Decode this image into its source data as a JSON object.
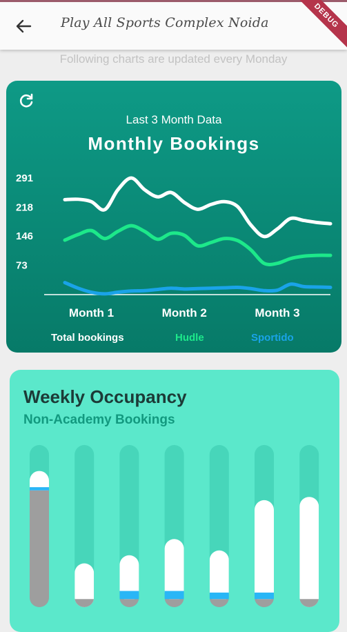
{
  "appbar": {
    "title": "Play All Sports Complex Noida",
    "debug_label": "DEBUG"
  },
  "header_note": "Following charts are updated every Monday",
  "icons": {
    "back": "arrow-left-icon",
    "refresh": "refresh-icon"
  },
  "colors": {
    "total": "#ffffff",
    "hudle": "#1de88a",
    "sportido": "#1aa3e8",
    "monthly_card": "#0e9a86",
    "weekly_card": "#5be8cb",
    "bar_track": "#47d6ba",
    "bar_grey": "#9e9e9e",
    "bar_white": "#ffffff",
    "bar_blue": "#29b6f6"
  },
  "monthly": {
    "kicker": "Last 3 Month Data",
    "title": "Monthly Bookings"
  },
  "weekly": {
    "title": "Weekly Occupancy",
    "subtitle": "Non-Academy Bookings"
  },
  "chart_data": [
    {
      "type": "line",
      "title": "Monthly Bookings",
      "subtitle": "Last 3 Month Data",
      "categories": [
        "Month 1",
        "Month 2",
        "Month 3"
      ],
      "x": [
        0,
        1,
        2,
        3,
        4,
        5,
        6,
        7,
        8,
        9,
        10,
        11,
        12,
        13,
        14,
        15,
        16,
        17,
        18,
        19,
        20
      ],
      "x_ticks": [
        {
          "label": "Month 1",
          "x": 2
        },
        {
          "label": "Month 2",
          "x": 9
        },
        {
          "label": "Month 3",
          "x": 16
        }
      ],
      "y_ticks": [
        73,
        146,
        218,
        291
      ],
      "ylim": [
        0,
        310
      ],
      "grid": false,
      "legend": "bottom",
      "series": [
        {
          "name": "Total bookings",
          "color": "#ffffff",
          "values": [
            237,
            238,
            232,
            212,
            262,
            291,
            262,
            244,
            255,
            230,
            213,
            225,
            232,
            220,
            174,
            145,
            164,
            190,
            185,
            180,
            177
          ]
        },
        {
          "name": "Hudle",
          "color": "#1de88a",
          "values": [
            136,
            150,
            160,
            140,
            158,
            172,
            158,
            138,
            153,
            148,
            122,
            130,
            140,
            135,
            112,
            78,
            78,
            90,
            96,
            98,
            98
          ]
        },
        {
          "name": "Sportido",
          "color": "#1aa3e8",
          "values": [
            30,
            16,
            6,
            2,
            6,
            9,
            10,
            13,
            16,
            14,
            15,
            16,
            17,
            18,
            15,
            10,
            11,
            26,
            20,
            19,
            18
          ]
        }
      ]
    },
    {
      "type": "bar",
      "title": "Weekly Occupancy",
      "subtitle": "Non-Academy Bookings",
      "ylim": [
        0,
        1
      ],
      "series": [
        {
          "name": "grey",
          "color": "#9e9e9e",
          "values": [
            0.72,
            0.05,
            0.05,
            0.05,
            0.05,
            0.05,
            0.05
          ]
        },
        {
          "name": "blue",
          "color": "#29b6f6",
          "values": [
            0.02,
            0.0,
            0.05,
            0.05,
            0.04,
            0.04,
            0.0
          ]
        },
        {
          "name": "white",
          "color": "#ffffff",
          "values": [
            0.1,
            0.22,
            0.22,
            0.32,
            0.26,
            0.57,
            0.63
          ]
        }
      ]
    }
  ]
}
